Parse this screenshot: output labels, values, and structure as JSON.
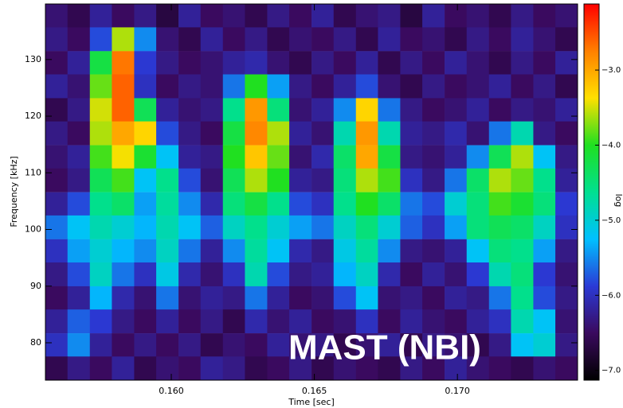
{
  "chart_data": {
    "type": "heatmap",
    "xlabel": "Time [sec]",
    "ylabel": "Frequency [kHz]",
    "annotation": "MAST (NBI)",
    "colorbar_label": "log",
    "xlim": [
      0.1556,
      0.1742
    ],
    "ylim": [
      73.4,
      139.8
    ],
    "clim": [
      -7.13,
      -2.12
    ],
    "xticks": [
      {
        "value": 0.16,
        "label": "0.160"
      },
      {
        "value": 0.165,
        "label": "0.165"
      },
      {
        "value": 0.17,
        "label": "0.170"
      }
    ],
    "yticks": [
      80,
      90,
      100,
      110,
      120,
      130
    ],
    "cticks": [
      {
        "value": -3,
        "label": "−3.0"
      },
      {
        "value": -4,
        "label": "−4.0"
      },
      {
        "value": -5,
        "label": "−5.0"
      },
      {
        "value": -6,
        "label": "−6.0"
      },
      {
        "value": -7,
        "label": "−7.0"
      }
    ],
    "colormap": [
      "#000000",
      "#3a0a5e",
      "#2a3ad6",
      "#00c0ff",
      "#00e090",
      "#20e020",
      "#ffe000",
      "#ff8000",
      "#ff0000"
    ],
    "x": [
      0.15599,
      0.15676,
      0.15754,
      0.15831,
      0.15909,
      0.15986,
      0.16064,
      0.16141,
      0.16219,
      0.16296,
      0.16374,
      0.16451,
      0.16529,
      0.16606,
      0.16684,
      0.16761,
      0.16839,
      0.16916,
      0.16994,
      0.17071,
      0.17149,
      0.17226,
      0.17304,
      0.17381
    ],
    "y": [
      137.7,
      133.6,
      129.4,
      125.3,
      121.1,
      117.0,
      112.8,
      108.7,
      104.5,
      100.4,
      96.2,
      92.1,
      87.9,
      83.8,
      79.6,
      75.5
    ],
    "values": [
      [
        -6.4,
        -6.6,
        -6.2,
        -6.5,
        -6.3,
        -6.7,
        -6.2,
        -6.5,
        -6.4,
        -6.6,
        -6.3,
        -6.5,
        -6.2,
        -6.6,
        -6.4,
        -6.3,
        -6.7,
        -6.2,
        -6.5,
        -6.4,
        -6.6,
        -6.3,
        -6.5,
        -6.4
      ],
      [
        -6.3,
        -6.5,
        -5.8,
        -3.6,
        -5.5,
        -6.4,
        -6.6,
        -6.2,
        -6.5,
        -6.3,
        -6.6,
        -6.4,
        -6.5,
        -6.3,
        -6.6,
        -6.2,
        -6.5,
        -6.4,
        -6.6,
        -6.3,
        -6.5,
        -6.2,
        -6.4,
        -6.6
      ],
      [
        -6.5,
        -6.2,
        -4.2,
        -2.7,
        -5.9,
        -6.3,
        -6.5,
        -6.4,
        -6.2,
        -6.1,
        -6.4,
        -6.6,
        -6.3,
        -6.5,
        -6.2,
        -6.6,
        -6.3,
        -6.5,
        -6.2,
        -6.4,
        -6.6,
        -6.3,
        -6.5,
        -6.2
      ],
      [
        -6.2,
        -6.4,
        -3.8,
        -2.6,
        -6.0,
        -6.5,
        -6.3,
        -6.4,
        -5.6,
        -4.0,
        -5.4,
        -6.3,
        -6.5,
        -6.2,
        -5.8,
        -6.4,
        -6.6,
        -6.3,
        -6.5,
        -6.4,
        -6.2,
        -6.5,
        -6.3,
        -6.6
      ],
      [
        -6.6,
        -6.3,
        -3.5,
        -2.6,
        -4.3,
        -6.2,
        -6.4,
        -6.3,
        -4.6,
        -2.9,
        -4.5,
        -6.4,
        -6.2,
        -5.5,
        -3.3,
        -5.6,
        -6.3,
        -6.5,
        -6.4,
        -6.2,
        -6.5,
        -6.3,
        -6.4,
        -6.2
      ],
      [
        -6.3,
        -6.5,
        -3.6,
        -3.0,
        -3.3,
        -5.8,
        -6.3,
        -6.5,
        -4.2,
        -2.8,
        -3.6,
        -6.2,
        -6.4,
        -4.8,
        -2.9,
        -4.8,
        -6.2,
        -6.3,
        -6.1,
        -6.4,
        -5.6,
        -4.8,
        -6.3,
        -6.5
      ],
      [
        -6.4,
        -6.2,
        -3.9,
        -3.4,
        -4.1,
        -5.2,
        -6.2,
        -6.3,
        -4.0,
        -3.2,
        -3.8,
        -6.4,
        -6.1,
        -4.4,
        -3.0,
        -4.2,
        -6.3,
        -6.4,
        -6.2,
        -5.5,
        -4.3,
        -3.6,
        -5.2,
        -6.3
      ],
      [
        -6.5,
        -6.3,
        -4.3,
        -3.9,
        -5.2,
        -4.6,
        -5.8,
        -6.4,
        -4.3,
        -3.6,
        -4.0,
        -6.2,
        -6.3,
        -4.5,
        -3.6,
        -3.9,
        -6.0,
        -6.3,
        -5.6,
        -4.4,
        -3.6,
        -3.8,
        -4.6,
        -6.2
      ],
      [
        -6.2,
        -5.8,
        -4.6,
        -4.4,
        -5.4,
        -4.7,
        -5.5,
        -6.1,
        -4.5,
        -4.2,
        -4.6,
        -5.8,
        -6.0,
        -4.6,
        -4.0,
        -4.4,
        -5.6,
        -5.8,
        -5.0,
        -4.5,
        -3.9,
        -4.1,
        -4.5,
        -5.9
      ],
      [
        -5.6,
        -5.2,
        -4.8,
        -5.0,
        -5.3,
        -4.8,
        -5.2,
        -5.7,
        -4.9,
        -4.6,
        -5.0,
        -5.4,
        -5.6,
        -4.9,
        -4.5,
        -5.0,
        -5.7,
        -6.0,
        -5.4,
        -4.5,
        -4.3,
        -4.4,
        -4.9,
        -6.0
      ],
      [
        -6.0,
        -5.4,
        -5.0,
        -5.3,
        -5.5,
        -4.9,
        -5.6,
        -6.2,
        -5.5,
        -4.7,
        -5.2,
        -6.1,
        -6.3,
        -5.1,
        -4.7,
        -5.5,
        -6.3,
        -6.4,
        -6.2,
        -5.2,
        -4.5,
        -4.6,
        -5.4,
        -6.3
      ],
      [
        -6.3,
        -5.8,
        -4.9,
        -5.6,
        -6.0,
        -5.1,
        -6.1,
        -6.4,
        -6.0,
        -4.8,
        -5.8,
        -6.3,
        -6.2,
        -5.3,
        -4.9,
        -6.1,
        -6.5,
        -6.2,
        -6.4,
        -5.9,
        -4.8,
        -4.5,
        -5.9,
        -6.4
      ],
      [
        -6.5,
        -6.2,
        -5.3,
        -6.1,
        -6.4,
        -5.6,
        -6.4,
        -6.2,
        -6.3,
        -5.6,
        -6.2,
        -6.5,
        -6.4,
        -5.8,
        -5.2,
        -6.4,
        -6.3,
        -6.5,
        -6.2,
        -6.3,
        -5.6,
        -4.6,
        -5.8,
        -6.3
      ],
      [
        -6.2,
        -5.7,
        -5.9,
        -6.3,
        -6.5,
        -6.2,
        -6.5,
        -6.3,
        -6.6,
        -6.1,
        -6.4,
        -6.2,
        -6.5,
        -6.4,
        -6.0,
        -6.5,
        -6.2,
        -6.4,
        -6.5,
        -6.2,
        -6.0,
        -4.8,
        -5.2,
        -6.4
      ],
      [
        -6.0,
        -5.5,
        -6.2,
        -6.5,
        -6.3,
        -6.5,
        -6.3,
        -6.6,
        -6.4,
        -6.5,
        -6.2,
        -6.4,
        -6.3,
        -6.6,
        -6.4,
        -6.2,
        -6.6,
        -6.3,
        -6.4,
        -6.6,
        -6.3,
        -5.2,
        -5.0,
        -6.3
      ],
      [
        -6.6,
        -6.3,
        -6.5,
        -6.2,
        -6.6,
        -6.4,
        -6.5,
        -6.2,
        -6.3,
        -6.6,
        -6.5,
        -6.3,
        -6.6,
        -6.4,
        -6.5,
        -6.6,
        -6.3,
        -6.5,
        -6.2,
        -6.4,
        -6.5,
        -6.6,
        -6.4,
        -6.5
      ]
    ]
  }
}
